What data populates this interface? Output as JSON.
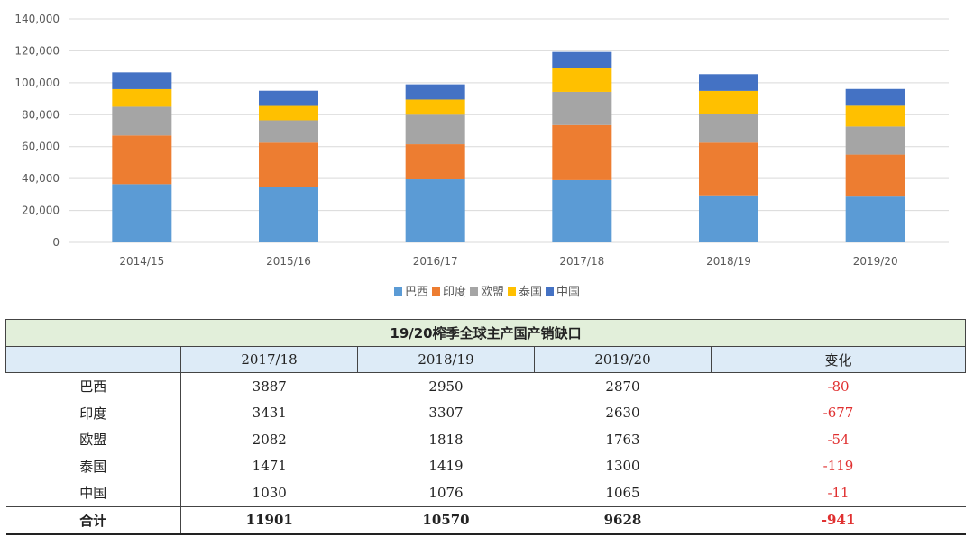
{
  "chart_data": {
    "type": "bar",
    "stacked": true,
    "categories": [
      "2014/15",
      "2015/16",
      "2016/17",
      "2017/18",
      "2018/19",
      "2019/20"
    ],
    "series": [
      {
        "name": "巴西",
        "color": "#5b9bd5",
        "values": [
          36500,
          34500,
          39500,
          39000,
          29500,
          28700
        ]
      },
      {
        "name": "印度",
        "color": "#ed7d31",
        "values": [
          30500,
          28000,
          22000,
          34500,
          33000,
          26300
        ]
      },
      {
        "name": "欧盟",
        "color": "#a5a5a5",
        "values": [
          18000,
          14000,
          18500,
          20800,
          18200,
          17600
        ]
      },
      {
        "name": "泰国",
        "color": "#ffc000",
        "values": [
          11000,
          9000,
          9500,
          14700,
          14200,
          13000
        ]
      },
      {
        "name": "中国",
        "color": "#4472c4",
        "values": [
          10500,
          9500,
          9500,
          10300,
          10500,
          10500
        ]
      }
    ],
    "ylim": [
      0,
      140000
    ],
    "yticks": [
      "0",
      "20,000",
      "40,000",
      "60,000",
      "80,000",
      "100,000",
      "120,000",
      "140,000"
    ],
    "grid": true,
    "legend_position": "bottom",
    "title": "",
    "xlabel": "",
    "ylabel": ""
  },
  "table": {
    "title": "19/20榨季全球主产国产销缺口",
    "headers": [
      "",
      "2017/18",
      "2018/19",
      "2019/20",
      "变化"
    ],
    "rows": [
      [
        "巴西",
        "3887",
        "2950",
        "2870",
        "-80"
      ],
      [
        "印度",
        "3431",
        "3307",
        "2630",
        "-677"
      ],
      [
        "欧盟",
        "2082",
        "1818",
        "1763",
        "-54"
      ],
      [
        "泰国",
        "1471",
        "1419",
        "1300",
        "-119"
      ],
      [
        "中国",
        "1030",
        "1076",
        "1065",
        "-11"
      ]
    ],
    "total": [
      "合计",
      "11901",
      "10570",
      "9628",
      "-941"
    ]
  }
}
